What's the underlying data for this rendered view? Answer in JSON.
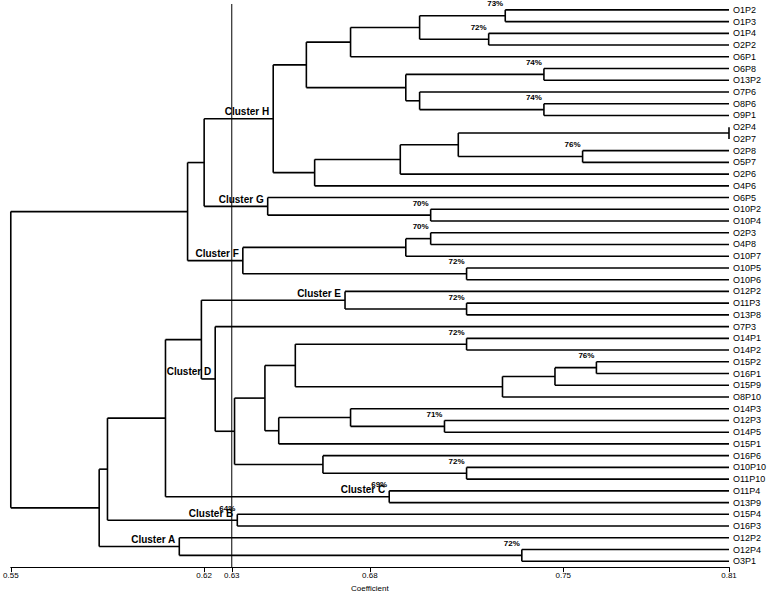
{
  "chart_data": {
    "type": "dendrogram",
    "xlabel": "Coefficient",
    "xlim": [
      0.55,
      0.81
    ],
    "xticks": [
      0.55,
      0.62,
      0.63,
      0.68,
      0.75,
      0.81
    ],
    "cutoff": 0.63,
    "color": "#000000",
    "grid": false,
    "tick_labels": "x",
    "tree": {
      "coefficient": 0.55,
      "children": [
        {
          "coefficient": 0.614,
          "children": [
            {
              "coefficient": 0.62,
              "children": [
                {
                  "coefficient": 0.645,
                  "cluster": "Cluster H",
                  "children": [
                    {
                      "coefficient": 0.657,
                      "children": [
                        {
                          "coefficient": 0.673,
                          "children": [
                            {
                              "coefficient": 0.698,
                              "children": [
                                {
                                  "coefficient": 0.729,
                                  "support": 73,
                                  "support_label": "73%",
                                  "children": [
                                    {
                                      "label": "O1P2"
                                    },
                                    {
                                      "label": "O1P3"
                                    }
                                  ]
                                },
                                {
                                  "coefficient": 0.723,
                                  "support": 72,
                                  "support_label": "72%",
                                  "children": [
                                    {
                                      "label": "O1P4"
                                    },
                                    {
                                      "label": "O2P2"
                                    }
                                  ]
                                }
                              ]
                            },
                            {
                              "label": "O6P1"
                            }
                          ]
                        },
                        {
                          "coefficient": 0.693,
                          "children": [
                            {
                              "coefficient": 0.743,
                              "support": 74,
                              "support_label": "74%",
                              "children": [
                                {
                                  "label": "O6P8"
                                },
                                {
                                  "label": "O13P2"
                                }
                              ]
                            },
                            {
                              "coefficient": 0.698,
                              "children": [
                                {
                                  "label": "O7P6"
                                },
                                {
                                  "coefficient": 0.743,
                                  "support": 74,
                                  "support_label": "74%",
                                  "children": [
                                    {
                                      "label": "O8P6"
                                    },
                                    {
                                      "label": "O9P1"
                                    }
                                  ]
                                }
                              ]
                            }
                          ]
                        }
                      ]
                    },
                    {
                      "coefficient": 0.66,
                      "children": [
                        {
                          "coefficient": 0.691,
                          "children": [
                            {
                              "coefficient": 0.712,
                              "children": [
                                {
                                  "coefficient": 0.81,
                                  "children": [
                                    {
                                      "label": "O2P4"
                                    },
                                    {
                                      "label": "O2P7"
                                    }
                                  ]
                                },
                                {
                                  "coefficient": 0.757,
                                  "support": 76,
                                  "support_label": "76%",
                                  "children": [
                                    {
                                      "label": "O2P8"
                                    },
                                    {
                                      "label": "O5P7"
                                    }
                                  ]
                                }
                              ]
                            },
                            {
                              "label": "O2P6"
                            }
                          ]
                        },
                        {
                          "label": "O4P6"
                        }
                      ]
                    }
                  ]
                },
                {
                  "coefficient": 0.643,
                  "cluster": "Cluster G",
                  "children": [
                    {
                      "label": "O6P5"
                    },
                    {
                      "coefficient": 0.702,
                      "support": 70,
                      "support_label": "70%",
                      "children": [
                        {
                          "label": "O10P2"
                        },
                        {
                          "label": "O10P4"
                        }
                      ]
                    }
                  ]
                }
              ]
            },
            {
              "coefficient": 0.634,
              "cluster": "Cluster F",
              "children": [
                {
                  "coefficient": 0.693,
                  "children": [
                    {
                      "coefficient": 0.702,
                      "support": 70,
                      "support_label": "70%",
                      "children": [
                        {
                          "label": "O2P3"
                        },
                        {
                          "label": "O4P8"
                        }
                      ]
                    },
                    {
                      "label": "O10P7"
                    }
                  ]
                },
                {
                  "coefficient": 0.715,
                  "support": 72,
                  "support_label": "72%",
                  "children": [
                    {
                      "label": "O10P5"
                    },
                    {
                      "label": "O10P6"
                    }
                  ]
                }
              ]
            }
          ]
        },
        {
          "coefficient": 0.582,
          "children": [
            {
              "coefficient": 0.585,
              "children": [
                {
                  "coefficient": 0.606,
                  "children": [
                    {
                      "coefficient": 0.619,
                      "children": [
                        {
                          "coefficient": 0.671,
                          "cluster": "Cluster E",
                          "children": [
                            {
                              "label": "O12P2"
                            },
                            {
                              "coefficient": 0.715,
                              "support": 72,
                              "support_label": "72%",
                              "children": [
                                {
                                  "label": "O11P3"
                                },
                                {
                                  "label": "O13P8"
                                }
                              ]
                            }
                          ]
                        },
                        {
                          "coefficient": 0.624,
                          "cluster": "Cluster D",
                          "children": [
                            {
                              "label": "O7P3"
                            },
                            {
                              "coefficient": 0.631,
                              "children": [
                                {
                                  "coefficient": 0.642,
                                  "children": [
                                    {
                                      "coefficient": 0.653,
                                      "children": [
                                        {
                                          "coefficient": 0.715,
                                          "support": 72,
                                          "support_label": "72%",
                                          "children": [
                                            {
                                              "label": "O14P1"
                                            },
                                            {
                                              "label": "O14P2"
                                            }
                                          ]
                                        },
                                        {
                                          "coefficient": 0.728,
                                          "children": [
                                            {
                                              "coefficient": 0.747,
                                              "children": [
                                                {
                                                  "coefficient": 0.762,
                                                  "support": 76,
                                                  "support_label": "76%",
                                                  "children": [
                                                    {
                                                      "label": "O15P2"
                                                    },
                                                    {
                                                      "label": "O16P1"
                                                    }
                                                  ]
                                                },
                                                {
                                                  "label": "O15P9"
                                                }
                                              ]
                                            },
                                            {
                                              "label": "O8P10"
                                            }
                                          ]
                                        }
                                      ]
                                    },
                                    {
                                      "coefficient": 0.647,
                                      "children": [
                                        {
                                          "coefficient": 0.673,
                                          "children": [
                                            {
                                              "label": "O14P3"
                                            },
                                            {
                                              "coefficient": 0.707,
                                              "support": 71,
                                              "support_label": "71%",
                                              "children": [
                                                {
                                                  "label": "O12P3"
                                                },
                                                {
                                                  "label": "O14P5"
                                                }
                                              ]
                                            }
                                          ]
                                        },
                                        {
                                          "label": "O15P1"
                                        }
                                      ]
                                    }
                                  ]
                                },
                                {
                                  "coefficient": 0.663,
                                  "children": [
                                    {
                                      "label": "O16P6"
                                    },
                                    {
                                      "coefficient": 0.715,
                                      "support": 72,
                                      "support_label": "72%",
                                      "children": [
                                        {
                                          "label": "O10P10"
                                        },
                                        {
                                          "label": "O11P10"
                                        }
                                      ]
                                    }
                                  ]
                                }
                              ]
                            }
                          ]
                        }
                      ]
                    },
                    {
                      "coefficient": 0.687,
                      "support": 69,
                      "support_label": "69%",
                      "cluster": "Cluster C",
                      "children": [
                        {
                          "label": "O11P4"
                        },
                        {
                          "label": "O13P9"
                        }
                      ]
                    }
                  ]
                },
                {
                  "coefficient": 0.632,
                  "support": 64,
                  "support_label": "64%",
                  "cluster": "Cluster B",
                  "children": [
                    {
                      "label": "O15P4"
                    },
                    {
                      "label": "O16P3"
                    }
                  ]
                }
              ]
            },
            {
              "coefficient": 0.611,
              "cluster": "Cluster A",
              "children": [
                {
                  "label": "O12P2"
                },
                {
                  "coefficient": 0.735,
                  "support": 72,
                  "support_label": "72%",
                  "children": [
                    {
                      "label": "O12P4"
                    },
                    {
                      "label": "O3P1"
                    }
                  ]
                }
              ]
            }
          ]
        }
      ]
    }
  }
}
